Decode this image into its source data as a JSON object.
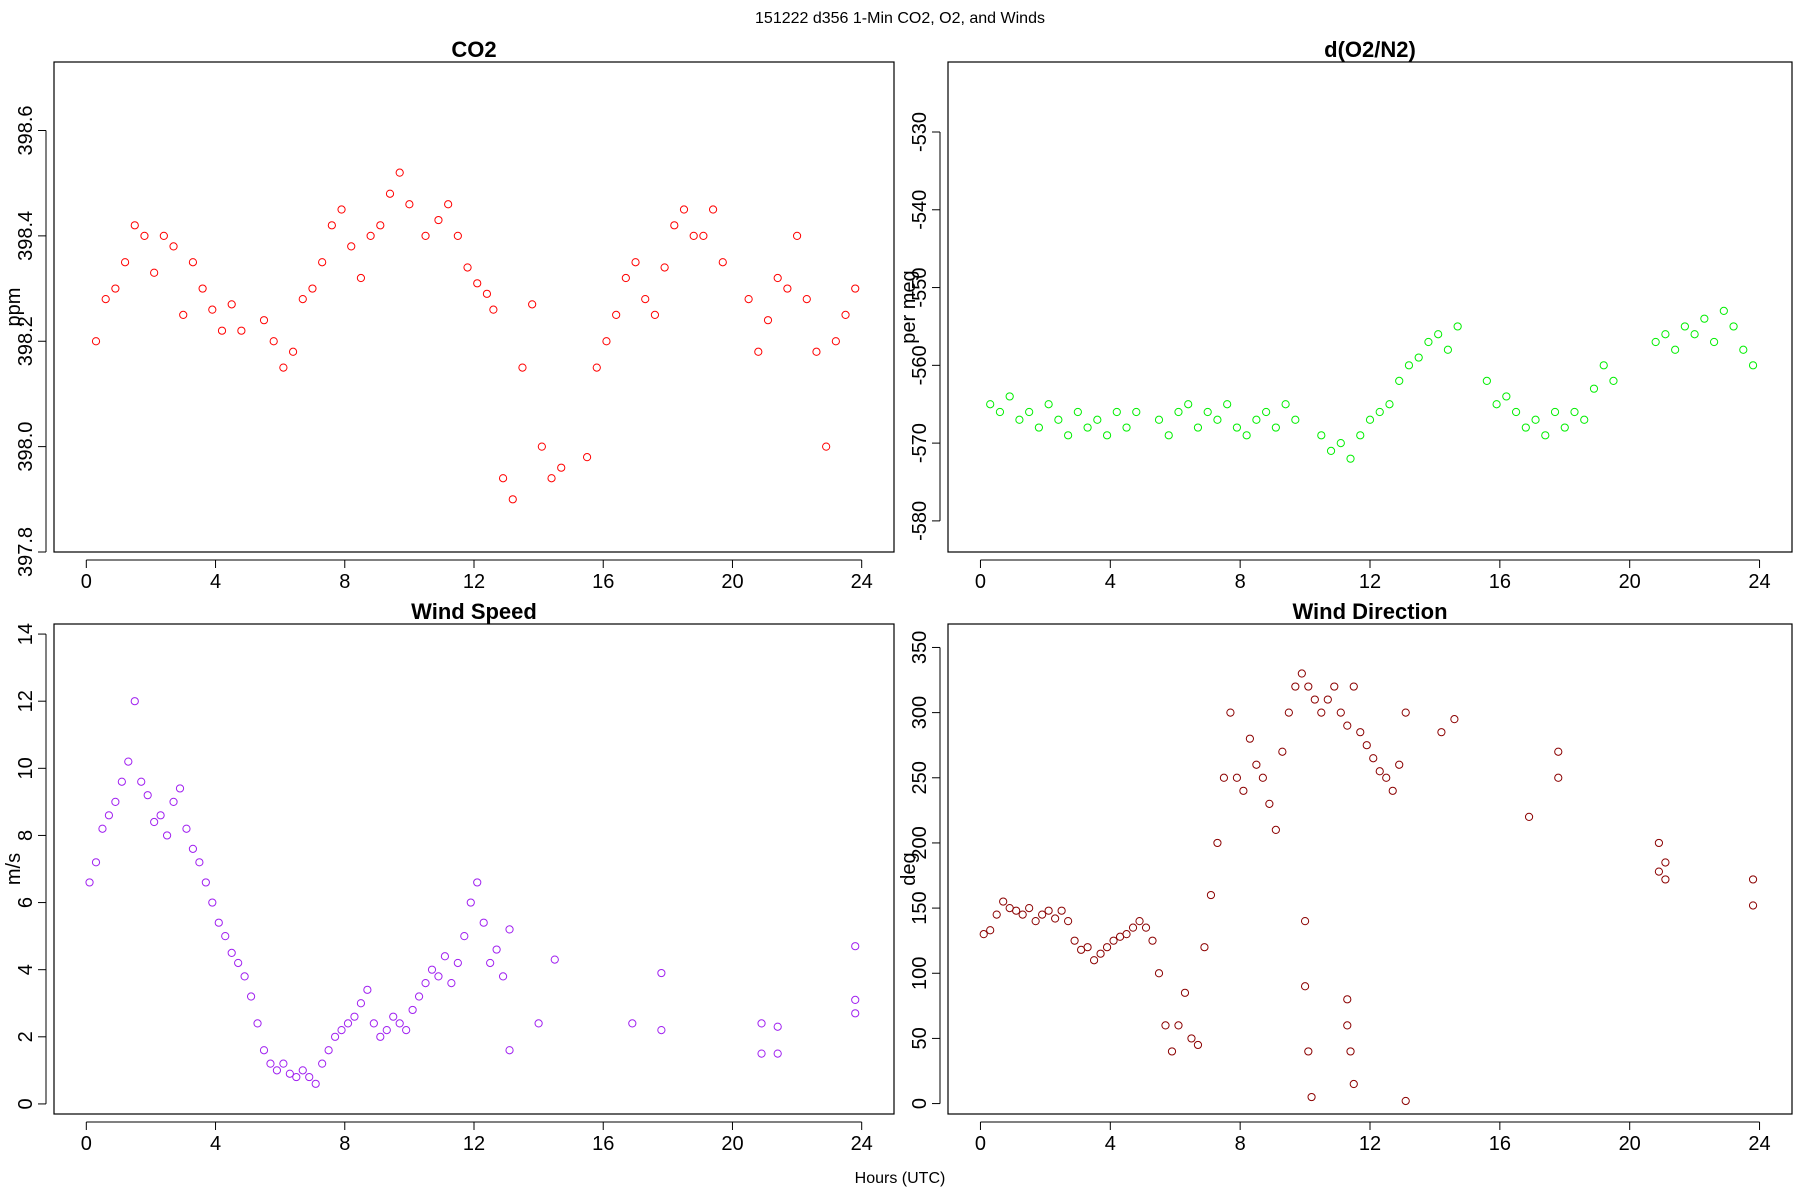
{
  "figure": {
    "suptitle": "151222   d356   1-Min CO2, O2, and Winds",
    "xlabel": "Hours (UTC)"
  },
  "chart_data": [
    {
      "type": "scatter",
      "title": "CO2",
      "xlabel": "",
      "ylabel": "ppm",
      "xlim": [
        -1,
        25
      ],
      "ylim": [
        397.8,
        398.73
      ],
      "xticks": [
        0,
        4,
        8,
        12,
        16,
        20,
        24
      ],
      "yticks": [
        397.8,
        398.0,
        398.2,
        398.4,
        398.6
      ],
      "ytick_labels": [
        "397.8",
        "398.0",
        "398.2",
        "398.4",
        "398.6"
      ],
      "grid": false,
      "color": "#ff0000",
      "marker": "open circle",
      "points": [
        [
          0.3,
          398.2
        ],
        [
          0.6,
          398.28
        ],
        [
          0.9,
          398.3
        ],
        [
          1.2,
          398.35
        ],
        [
          1.5,
          398.42
        ],
        [
          1.8,
          398.4
        ],
        [
          2.1,
          398.33
        ],
        [
          2.4,
          398.4
        ],
        [
          2.7,
          398.38
        ],
        [
          3.0,
          398.25
        ],
        [
          3.3,
          398.35
        ],
        [
          3.6,
          398.3
        ],
        [
          3.9,
          398.26
        ],
        [
          4.2,
          398.22
        ],
        [
          4.5,
          398.27
        ],
        [
          4.8,
          398.22
        ],
        [
          5.5,
          398.24
        ],
        [
          5.8,
          398.2
        ],
        [
          6.1,
          398.15
        ],
        [
          6.4,
          398.18
        ],
        [
          6.7,
          398.28
        ],
        [
          7.0,
          398.3
        ],
        [
          7.3,
          398.35
        ],
        [
          7.6,
          398.42
        ],
        [
          7.9,
          398.45
        ],
        [
          8.2,
          398.38
        ],
        [
          8.5,
          398.32
        ],
        [
          8.8,
          398.4
        ],
        [
          9.1,
          398.42
        ],
        [
          9.4,
          398.48
        ],
        [
          9.7,
          398.52
        ],
        [
          10.0,
          398.46
        ],
        [
          10.5,
          398.4
        ],
        [
          10.9,
          398.43
        ],
        [
          11.2,
          398.46
        ],
        [
          11.5,
          398.4
        ],
        [
          11.8,
          398.34
        ],
        [
          12.1,
          398.31
        ],
        [
          12.4,
          398.29
        ],
        [
          12.6,
          398.26
        ],
        [
          12.9,
          397.94
        ],
        [
          13.2,
          397.9
        ],
        [
          13.5,
          398.15
        ],
        [
          13.8,
          398.27
        ],
        [
          14.1,
          398.0
        ],
        [
          14.4,
          397.94
        ],
        [
          14.7,
          397.96
        ],
        [
          15.5,
          397.98
        ],
        [
          15.8,
          398.15
        ],
        [
          16.1,
          398.2
        ],
        [
          16.4,
          398.25
        ],
        [
          16.7,
          398.32
        ],
        [
          17.0,
          398.35
        ],
        [
          17.3,
          398.28
        ],
        [
          17.6,
          398.25
        ],
        [
          17.9,
          398.34
        ],
        [
          18.2,
          398.42
        ],
        [
          18.5,
          398.45
        ],
        [
          18.8,
          398.4
        ],
        [
          19.1,
          398.4
        ],
        [
          19.4,
          398.45
        ],
        [
          19.7,
          398.35
        ],
        [
          20.5,
          398.28
        ],
        [
          20.8,
          398.18
        ],
        [
          21.1,
          398.24
        ],
        [
          21.4,
          398.32
        ],
        [
          21.7,
          398.3
        ],
        [
          22.0,
          398.4
        ],
        [
          22.3,
          398.28
        ],
        [
          22.6,
          398.18
        ],
        [
          22.9,
          398.0
        ],
        [
          23.2,
          398.2
        ],
        [
          23.5,
          398.25
        ],
        [
          23.8,
          398.3
        ]
      ]
    },
    {
      "type": "scatter",
      "title": "d(O2/N2)",
      "xlabel": "",
      "ylabel": "per meg",
      "xlim": [
        -1,
        25
      ],
      "ylim": [
        -584,
        -521
      ],
      "xticks": [
        0,
        4,
        8,
        12,
        16,
        20,
        24
      ],
      "yticks": [
        -580,
        -570,
        -560,
        -550,
        -540,
        -530
      ],
      "ytick_labels": [
        "-580",
        "-570",
        "-560",
        "-550",
        "-540",
        "-530"
      ],
      "grid": false,
      "color": "#00ee00",
      "marker": "open circle",
      "points": [
        [
          0.3,
          -565
        ],
        [
          0.6,
          -566
        ],
        [
          0.9,
          -564
        ],
        [
          1.2,
          -567
        ],
        [
          1.5,
          -566
        ],
        [
          1.8,
          -568
        ],
        [
          2.1,
          -565
        ],
        [
          2.4,
          -567
        ],
        [
          2.7,
          -569
        ],
        [
          3.0,
          -566
        ],
        [
          3.3,
          -568
        ],
        [
          3.6,
          -567
        ],
        [
          3.9,
          -569
        ],
        [
          4.2,
          -566
        ],
        [
          4.5,
          -568
        ],
        [
          4.8,
          -566
        ],
        [
          5.5,
          -567
        ],
        [
          5.8,
          -569
        ],
        [
          6.1,
          -566
        ],
        [
          6.4,
          -565
        ],
        [
          6.7,
          -568
        ],
        [
          7.0,
          -566
        ],
        [
          7.3,
          -567
        ],
        [
          7.6,
          -565
        ],
        [
          7.9,
          -568
        ],
        [
          8.2,
          -569
        ],
        [
          8.5,
          -567
        ],
        [
          8.8,
          -566
        ],
        [
          9.1,
          -568
        ],
        [
          9.4,
          -565
        ],
        [
          9.7,
          -567
        ],
        [
          10.5,
          -569
        ],
        [
          10.8,
          -571
        ],
        [
          11.1,
          -570
        ],
        [
          11.4,
          -572
        ],
        [
          11.7,
          -569
        ],
        [
          12.0,
          -567
        ],
        [
          12.3,
          -566
        ],
        [
          12.6,
          -565
        ],
        [
          12.9,
          -562
        ],
        [
          13.2,
          -560
        ],
        [
          13.5,
          -559
        ],
        [
          13.8,
          -557
        ],
        [
          14.1,
          -556
        ],
        [
          14.4,
          -558
        ],
        [
          14.7,
          -555
        ],
        [
          15.6,
          -562
        ],
        [
          15.9,
          -565
        ],
        [
          16.2,
          -564
        ],
        [
          16.5,
          -566
        ],
        [
          16.8,
          -568
        ],
        [
          17.1,
          -567
        ],
        [
          17.4,
          -569
        ],
        [
          17.7,
          -566
        ],
        [
          18.0,
          -568
        ],
        [
          18.3,
          -566
        ],
        [
          18.6,
          -567
        ],
        [
          18.9,
          -563
        ],
        [
          19.2,
          -560
        ],
        [
          19.5,
          -562
        ],
        [
          20.8,
          -557
        ],
        [
          21.1,
          -556
        ],
        [
          21.4,
          -558
        ],
        [
          21.7,
          -555
        ],
        [
          22.0,
          -556
        ],
        [
          22.3,
          -554
        ],
        [
          22.6,
          -557
        ],
        [
          22.9,
          -553
        ],
        [
          23.2,
          -555
        ],
        [
          23.5,
          -558
        ],
        [
          23.8,
          -560
        ]
      ]
    },
    {
      "type": "scatter",
      "title": "Wind Speed",
      "xlabel": "",
      "ylabel": "m/s",
      "xlim": [
        -1,
        25
      ],
      "ylim": [
        -0.3,
        14.3
      ],
      "xticks": [
        0,
        4,
        8,
        12,
        16,
        20,
        24
      ],
      "yticks": [
        0,
        2,
        4,
        6,
        8,
        10,
        12,
        14
      ],
      "ytick_labels": [
        "0",
        "2",
        "4",
        "6",
        "8",
        "10",
        "12",
        "14"
      ],
      "grid": false,
      "color": "#a020f0",
      "marker": "open circle",
      "points": [
        [
          0.1,
          6.6
        ],
        [
          0.3,
          7.2
        ],
        [
          0.5,
          8.2
        ],
        [
          0.7,
          8.6
        ],
        [
          0.9,
          9.0
        ],
        [
          1.1,
          9.6
        ],
        [
          1.3,
          10.2
        ],
        [
          1.5,
          12.0
        ],
        [
          1.7,
          9.6
        ],
        [
          1.9,
          9.2
        ],
        [
          2.1,
          8.4
        ],
        [
          2.3,
          8.6
        ],
        [
          2.5,
          8.0
        ],
        [
          2.7,
          9.0
        ],
        [
          2.9,
          9.4
        ],
        [
          3.1,
          8.2
        ],
        [
          3.3,
          7.6
        ],
        [
          3.5,
          7.2
        ],
        [
          3.7,
          6.6
        ],
        [
          3.9,
          6.0
        ],
        [
          4.1,
          5.4
        ],
        [
          4.3,
          5.0
        ],
        [
          4.5,
          4.5
        ],
        [
          4.7,
          4.2
        ],
        [
          4.9,
          3.8
        ],
        [
          5.1,
          3.2
        ],
        [
          5.3,
          2.4
        ],
        [
          5.5,
          1.6
        ],
        [
          5.7,
          1.2
        ],
        [
          5.9,
          1.0
        ],
        [
          6.1,
          1.2
        ],
        [
          6.3,
          0.9
        ],
        [
          6.5,
          0.8
        ],
        [
          6.7,
          1.0
        ],
        [
          6.9,
          0.8
        ],
        [
          7.1,
          0.6
        ],
        [
          7.3,
          1.2
        ],
        [
          7.5,
          1.6
        ],
        [
          7.7,
          2.0
        ],
        [
          7.9,
          2.2
        ],
        [
          8.1,
          2.4
        ],
        [
          8.3,
          2.6
        ],
        [
          8.5,
          3.0
        ],
        [
          8.7,
          3.4
        ],
        [
          8.9,
          2.4
        ],
        [
          9.1,
          2.0
        ],
        [
          9.3,
          2.2
        ],
        [
          9.5,
          2.6
        ],
        [
          9.7,
          2.4
        ],
        [
          9.9,
          2.2
        ],
        [
          10.1,
          2.8
        ],
        [
          10.3,
          3.2
        ],
        [
          10.5,
          3.6
        ],
        [
          10.7,
          4.0
        ],
        [
          10.9,
          3.8
        ],
        [
          11.1,
          4.4
        ],
        [
          11.3,
          3.6
        ],
        [
          11.5,
          4.2
        ],
        [
          11.7,
          5.0
        ],
        [
          11.9,
          6.0
        ],
        [
          12.1,
          6.6
        ],
        [
          12.3,
          5.4
        ],
        [
          12.5,
          4.2
        ],
        [
          12.7,
          4.6
        ],
        [
          12.9,
          3.8
        ],
        [
          13.1,
          1.6
        ],
        [
          13.1,
          5.2
        ],
        [
          14.0,
          2.4
        ],
        [
          14.5,
          4.3
        ],
        [
          16.9,
          2.4
        ],
        [
          17.8,
          2.2
        ],
        [
          17.8,
          3.9
        ],
        [
          20.9,
          2.4
        ],
        [
          20.9,
          1.5
        ],
        [
          21.4,
          1.5
        ],
        [
          21.4,
          2.3
        ],
        [
          23.8,
          3.1
        ],
        [
          23.8,
          2.7
        ],
        [
          23.8,
          4.7
        ]
      ]
    },
    {
      "type": "scatter",
      "title": "Wind Direction",
      "xlabel": "",
      "ylabel": "deg",
      "xlim": [
        -1,
        25
      ],
      "ylim": [
        -8,
        368
      ],
      "xticks": [
        0,
        4,
        8,
        12,
        16,
        20,
        24
      ],
      "yticks": [
        0,
        50,
        100,
        150,
        200,
        250,
        300,
        350
      ],
      "ytick_labels": [
        "0",
        "50",
        "100",
        "150",
        "200",
        "250",
        "300",
        "350"
      ],
      "grid": false,
      "color": "#8b0000",
      "marker": "open circle",
      "points": [
        [
          0.1,
          130
        ],
        [
          0.3,
          133
        ],
        [
          0.5,
          145
        ],
        [
          0.7,
          155
        ],
        [
          0.9,
          150
        ],
        [
          1.1,
          148
        ],
        [
          1.3,
          145
        ],
        [
          1.5,
          150
        ],
        [
          1.7,
          140
        ],
        [
          1.9,
          145
        ],
        [
          2.1,
          148
        ],
        [
          2.3,
          142
        ],
        [
          2.5,
          148
        ],
        [
          2.7,
          140
        ],
        [
          2.9,
          125
        ],
        [
          3.1,
          118
        ],
        [
          3.3,
          120
        ],
        [
          3.5,
          110
        ],
        [
          3.7,
          115
        ],
        [
          3.9,
          120
        ],
        [
          4.1,
          125
        ],
        [
          4.3,
          128
        ],
        [
          4.5,
          130
        ],
        [
          4.7,
          135
        ],
        [
          4.9,
          140
        ],
        [
          5.1,
          135
        ],
        [
          5.3,
          125
        ],
        [
          5.5,
          100
        ],
        [
          5.7,
          60
        ],
        [
          5.9,
          40
        ],
        [
          6.1,
          60
        ],
        [
          6.3,
          85
        ],
        [
          6.5,
          50
        ],
        [
          6.7,
          45
        ],
        [
          6.9,
          120
        ],
        [
          7.1,
          160
        ],
        [
          7.3,
          200
        ],
        [
          7.5,
          250
        ],
        [
          7.7,
          300
        ],
        [
          7.9,
          250
        ],
        [
          8.1,
          240
        ],
        [
          8.3,
          280
        ],
        [
          8.5,
          260
        ],
        [
          8.7,
          250
        ],
        [
          8.9,
          230
        ],
        [
          9.1,
          210
        ],
        [
          9.3,
          270
        ],
        [
          9.5,
          300
        ],
        [
          9.7,
          320
        ],
        [
          9.9,
          330
        ],
        [
          10.1,
          320
        ],
        [
          10.3,
          310
        ],
        [
          10.5,
          300
        ],
        [
          10.7,
          310
        ],
        [
          10.9,
          320
        ],
        [
          11.1,
          300
        ],
        [
          11.3,
          290
        ],
        [
          11.5,
          320
        ],
        [
          11.7,
          285
        ],
        [
          11.9,
          275
        ],
        [
          12.1,
          265
        ],
        [
          12.3,
          255
        ],
        [
          12.5,
          250
        ],
        [
          12.7,
          240
        ],
        [
          12.9,
          260
        ],
        [
          13.1,
          300
        ],
        [
          10.0,
          140
        ],
        [
          10.0,
          90
        ],
        [
          10.1,
          40
        ],
        [
          10.2,
          5
        ],
        [
          11.3,
          60
        ],
        [
          11.3,
          80
        ],
        [
          11.4,
          40
        ],
        [
          11.5,
          15
        ],
        [
          14.2,
          285
        ],
        [
          14.6,
          295
        ],
        [
          16.9,
          220
        ],
        [
          17.8,
          250
        ],
        [
          17.8,
          270
        ],
        [
          20.9,
          200
        ],
        [
          20.9,
          178
        ],
        [
          21.1,
          185
        ],
        [
          21.1,
          172
        ],
        [
          23.8,
          152
        ],
        [
          23.8,
          172
        ],
        [
          13.1,
          2
        ]
      ]
    }
  ]
}
